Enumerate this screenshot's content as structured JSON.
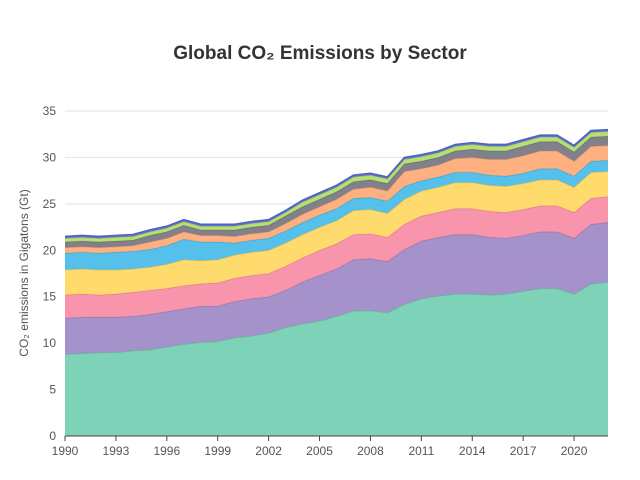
{
  "chart_data": {
    "type": "area",
    "stacked": true,
    "title": "Global CO₂ Emissions by Sector",
    "xlabel": "",
    "ylabel": "CO₂ emissions in Gigatons (Gt)",
    "xlim": [
      1990,
      2022
    ],
    "ylim": [
      0,
      35
    ],
    "x_ticks": [
      1990,
      1993,
      1996,
      1999,
      2002,
      2005,
      2008,
      2011,
      2014,
      2017,
      2020
    ],
    "y_ticks": [
      0,
      5,
      10,
      15,
      20,
      25,
      30,
      35
    ],
    "grid": "horizontal",
    "legend": "none",
    "x": [
      1990,
      1991,
      1992,
      1993,
      1994,
      1995,
      1996,
      1997,
      1998,
      1999,
      2000,
      2001,
      2002,
      2003,
      2004,
      2005,
      2006,
      2007,
      2008,
      2009,
      2010,
      2011,
      2012,
      2013,
      2014,
      2015,
      2016,
      2017,
      2018,
      2019,
      2020,
      2021,
      2022
    ],
    "series": [
      {
        "color": "#76d0b3",
        "values": [
          8.8,
          8.9,
          9.0,
          9.0,
          9.2,
          9.3,
          9.6,
          9.9,
          10.1,
          10.2,
          10.6,
          10.8,
          11.1,
          11.7,
          12.1,
          12.4,
          12.9,
          13.5,
          13.5,
          13.3,
          14.2,
          14.8,
          15.1,
          15.3,
          15.3,
          15.2,
          15.3,
          15.6,
          15.9,
          15.9,
          15.3,
          16.4,
          16.6
        ]
      },
      {
        "color": "#a08cc8",
        "values": [
          3.9,
          3.9,
          3.8,
          3.8,
          3.7,
          3.8,
          3.8,
          3.8,
          3.9,
          3.8,
          3.9,
          4.0,
          3.9,
          4.0,
          4.5,
          4.9,
          5.1,
          5.5,
          5.6,
          5.5,
          5.9,
          6.2,
          6.3,
          6.4,
          6.4,
          6.2,
          6.0,
          6.0,
          6.1,
          6.1,
          6.0,
          6.4,
          6.4
        ]
      },
      {
        "color": "#f98ea9",
        "values": [
          2.5,
          2.5,
          2.4,
          2.5,
          2.6,
          2.6,
          2.5,
          2.5,
          2.4,
          2.5,
          2.5,
          2.5,
          2.5,
          2.6,
          2.6,
          2.7,
          2.7,
          2.7,
          2.7,
          2.6,
          2.7,
          2.7,
          2.7,
          2.8,
          2.8,
          2.8,
          2.8,
          2.8,
          2.8,
          2.8,
          2.8,
          2.8,
          2.8
        ]
      },
      {
        "color": "#ffd966",
        "values": [
          2.7,
          2.7,
          2.7,
          2.6,
          2.5,
          2.5,
          2.6,
          2.8,
          2.5,
          2.5,
          2.5,
          2.5,
          2.5,
          2.5,
          2.5,
          2.5,
          2.5,
          2.6,
          2.6,
          2.6,
          2.7,
          2.7,
          2.7,
          2.8,
          2.8,
          2.8,
          2.8,
          2.8,
          2.8,
          2.8,
          2.7,
          2.8,
          2.7
        ]
      },
      {
        "color": "#4cbde9",
        "values": [
          1.8,
          1.8,
          1.8,
          1.9,
          1.9,
          1.9,
          2.0,
          2.2,
          2.0,
          1.9,
          1.3,
          1.3,
          1.3,
          1.3,
          1.3,
          1.3,
          1.3,
          1.3,
          1.3,
          1.3,
          1.4,
          1.1,
          1.1,
          1.1,
          1.1,
          1.1,
          1.1,
          1.1,
          1.2,
          1.2,
          1.2,
          1.2,
          1.2
        ]
      },
      {
        "color": "#ffac7a",
        "values": [
          0.6,
          0.6,
          0.6,
          0.6,
          0.6,
          0.8,
          0.8,
          0.8,
          0.7,
          0.7,
          0.7,
          0.7,
          0.7,
          0.8,
          0.9,
          0.9,
          1.0,
          1.0,
          1.1,
          1.1,
          1.6,
          1.3,
          1.3,
          1.5,
          1.6,
          1.7,
          1.8,
          1.9,
          1.9,
          1.9,
          1.6,
          1.6,
          1.6
        ]
      },
      {
        "color": "#7a7a86",
        "values": [
          0.6,
          0.6,
          0.6,
          0.6,
          0.6,
          0.7,
          0.7,
          0.7,
          0.6,
          0.6,
          0.7,
          0.7,
          0.7,
          0.8,
          0.8,
          0.8,
          0.8,
          0.8,
          0.8,
          0.8,
          0.8,
          0.8,
          0.8,
          0.8,
          0.9,
          0.9,
          0.9,
          1.0,
          1.0,
          1.0,
          1.0,
          1.0,
          1.0
        ]
      },
      {
        "color": "#b3de6a",
        "values": [
          0.4,
          0.4,
          0.4,
          0.4,
          0.4,
          0.4,
          0.4,
          0.4,
          0.4,
          0.4,
          0.4,
          0.4,
          0.4,
          0.4,
          0.5,
          0.5,
          0.5,
          0.5,
          0.5,
          0.5,
          0.5,
          0.5,
          0.5,
          0.5,
          0.5,
          0.5,
          0.5,
          0.5,
          0.5,
          0.5,
          0.5,
          0.5,
          0.5
        ]
      },
      {
        "color": "#5a6bd8",
        "values": [
          0.2,
          0.2,
          0.2,
          0.2,
          0.2,
          0.2,
          0.2,
          0.2,
          0.2,
          0.2,
          0.2,
          0.2,
          0.2,
          0.2,
          0.2,
          0.2,
          0.2,
          0.2,
          0.2,
          0.2,
          0.2,
          0.2,
          0.2,
          0.2,
          0.2,
          0.2,
          0.2,
          0.2,
          0.2,
          0.2,
          0.2,
          0.2,
          0.2
        ]
      }
    ]
  }
}
